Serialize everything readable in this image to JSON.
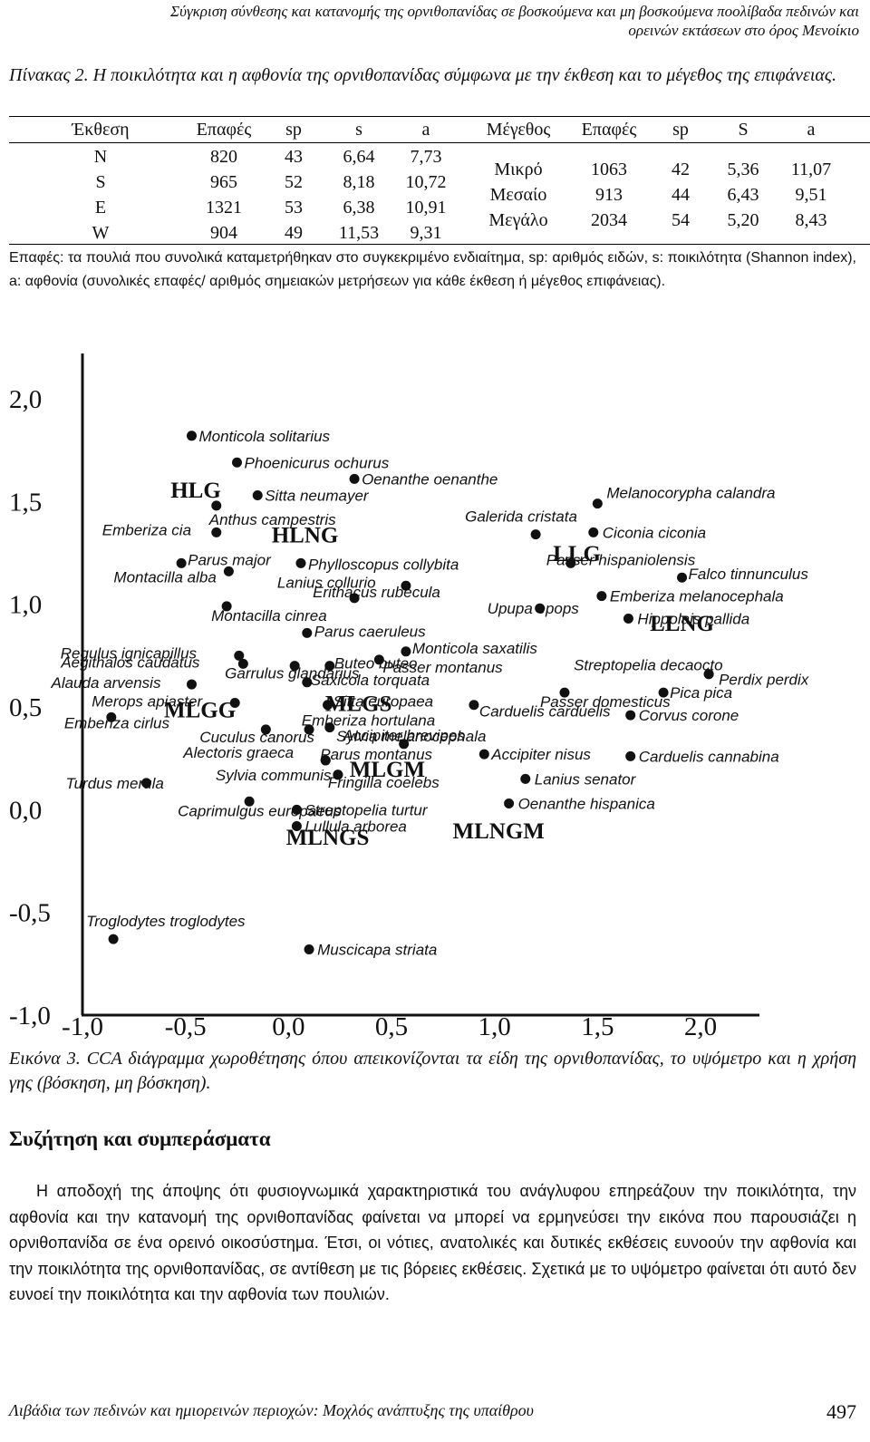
{
  "header": {
    "running_title_1": "Σύγκριση σύνθεσης και κατανομής της ορνιθοπανίδας σε βοσκούμενα και μη βοσκούμενα ποολίβαδα πεδινών και",
    "running_title_2": "ορεινών εκτάσεων στο όρος Μενοίκιο"
  },
  "table": {
    "caption": "Πίνακας 2. Η ποικιλότητα και η αφθονία της ορνιθοπανίδας σύμφωνα με την έκθεση και το μέγεθος της επιφάνειας.",
    "headers": [
      "Έκθεση",
      "Επαφές",
      "sp",
      "s",
      "a",
      "Μέγεθος",
      "Επαφές",
      "sp",
      "S",
      "a"
    ],
    "rows_exposure": [
      [
        "N",
        "820",
        "43",
        "6,64",
        "7,73"
      ],
      [
        "S",
        "965",
        "52",
        "8,18",
        "10,72"
      ],
      [
        "E",
        "1321",
        "53",
        "6,38",
        "10,91"
      ],
      [
        "W",
        "904",
        "49",
        "11,53",
        "9,31"
      ]
    ],
    "rows_size": [
      [
        "Μικρό",
        "1063",
        "42",
        "5,36",
        "11,07"
      ],
      [
        "Μεσαίο",
        "913",
        "44",
        "6,43",
        "9,51"
      ],
      [
        "Μεγάλο",
        "2034",
        "54",
        "5,20",
        "8,43"
      ]
    ],
    "note": "Επαφές: τα πουλιά που συνολικά καταμετρήθηκαν στο συγκεκριμένο ενδιαίτημα, sp: αριθμός ειδών, s: ποικιλότητα (Shannon index), a: αφθονία (συνολικές επαφές/ αριθμός σημειακών μετρήσεων για κάθε έκθεση ή μέγεθος επιφάνειας)."
  },
  "chart_data": {
    "type": "scatter",
    "xlim": [
      -1.0,
      2.0
    ],
    "ylim": [
      -1.0,
      2.0
    ],
    "x_ticks": [
      "-1,0",
      "-0,5",
      "0,0",
      "0,5",
      "1,0",
      "1,5",
      "2,0"
    ],
    "y_ticks": [
      "2,0",
      "1,5",
      "1,0",
      "0,5",
      "0,0",
      "-0,5",
      "-1,0"
    ],
    "grid": false,
    "points": [
      {
        "label": "Monticola solitarius",
        "x": -0.47,
        "y": 1.82
      },
      {
        "label": "Phoenicurus ochurus",
        "x": -0.25,
        "y": 1.69
      },
      {
        "label": "Oenanthe oenanthe",
        "x": 0.32,
        "y": 1.61
      },
      {
        "label": "Sitta neumayer",
        "x": -0.15,
        "y": 1.53
      },
      {
        "label": "Anthus campestris",
        "x": -0.35,
        "y": 1.48
      },
      {
        "label": "Melanocorypha calandra",
        "x": 1.5,
        "y": 1.49
      },
      {
        "label": "Galerida cristata",
        "x": 1.2,
        "y": 1.34
      },
      {
        "label": "Emberiza cia",
        "x": -0.35,
        "y": 1.35
      },
      {
        "label": "Ciconia ciconia",
        "x": 1.48,
        "y": 1.35
      },
      {
        "label": "Parus major",
        "x": -0.52,
        "y": 1.2
      },
      {
        "label": "Phylloscopus collybita",
        "x": 0.06,
        "y": 1.2
      },
      {
        "label": "Passer hispaniolensis",
        "x": 1.37,
        "y": 1.2
      },
      {
        "label": "Montacilla alba",
        "x": -0.29,
        "y": 1.16
      },
      {
        "label": "Lanius collurio",
        "x": 0.57,
        "y": 1.09
      },
      {
        "label": "Falco tinnunculus",
        "x": 1.91,
        "y": 1.13
      },
      {
        "label": "Erithacus rubecula",
        "x": 0.32,
        "y": 1.03
      },
      {
        "label": "Emberiza melanocephala",
        "x": 1.52,
        "y": 1.04
      },
      {
        "label": "Montacilla cinrea",
        "x": -0.3,
        "y": 0.99
      },
      {
        "label": "Upupa epops",
        "x": 1.22,
        "y": 0.98
      },
      {
        "label": "Hippolais pallida",
        "x": 1.65,
        "y": 0.93
      },
      {
        "label": "Parus caeruleus",
        "x": 0.09,
        "y": 0.86
      },
      {
        "label": "Monticola saxatilis",
        "x": 0.57,
        "y": 0.77
      },
      {
        "label": "Regulus ignicapillus",
        "x": -0.24,
        "y": 0.75
      },
      {
        "label": "Buteo buteo",
        "x": 0.2,
        "y": 0.7
      },
      {
        "label": "Aegithalos caudatus",
        "x": -0.22,
        "y": 0.71
      },
      {
        "label": "Passer montanus",
        "x": 0.44,
        "y": 0.73
      },
      {
        "label": "Streptopelia decaocto",
        "x": 2.04,
        "y": 0.66
      },
      {
        "label": "Perdix perdix",
        "x": 2.04,
        "y": 0.66
      },
      {
        "label": "Garrulus glandarius",
        "x": 0.03,
        "y": 0.7
      },
      {
        "label": "Alauda arvensis",
        "x": -0.47,
        "y": 0.61
      },
      {
        "label": "Saxicola torquata",
        "x": 0.09,
        "y": 0.62
      },
      {
        "label": "Pica pica",
        "x": 1.82,
        "y": 0.57
      },
      {
        "label": "Passer domesticus",
        "x": 1.34,
        "y": 0.57
      },
      {
        "label": "Merops apiaster",
        "x": -0.26,
        "y": 0.52
      },
      {
        "label": "Sitta europaea",
        "x": 0.19,
        "y": 0.51
      },
      {
        "label": "Carduelis carduelis",
        "x": 0.9,
        "y": 0.51
      },
      {
        "label": "Emberiza cirlus",
        "x": -0.86,
        "y": 0.45
      },
      {
        "label": "Emberiza hortulana",
        "x": 0.2,
        "y": 0.4
      },
      {
        "label": "Corvus corone",
        "x": 1.66,
        "y": 0.46
      },
      {
        "label": "Cuculus canorus",
        "x": -0.11,
        "y": 0.39
      },
      {
        "label": "Sylvia melanocephala",
        "x": 0.1,
        "y": 0.39
      },
      {
        "label": "Accipiter brevipes",
        "x": 0.56,
        "y": 0.32
      },
      {
        "label": "Alectoris graeca",
        "x": 0.18,
        "y": 0.24
      },
      {
        "label": "Parus montanus",
        "x": 0.18,
        "y": 0.24
      },
      {
        "label": "Accipiter nisus",
        "x": 0.95,
        "y": 0.27
      },
      {
        "label": "Carduelis cannabina",
        "x": 1.66,
        "y": 0.26
      },
      {
        "label": "Sylvia communis",
        "x": 0.24,
        "y": 0.17
      },
      {
        "label": "Fringilla coelebs",
        "x": 0.24,
        "y": 0.17
      },
      {
        "label": "Lanius senator",
        "x": 1.15,
        "y": 0.15
      },
      {
        "label": "Turdus merula",
        "x": -0.69,
        "y": 0.13
      },
      {
        "label": "Caprimulgus europaeus",
        "x": -0.19,
        "y": 0.04
      },
      {
        "label": "Oenanthe hispanica",
        "x": 1.07,
        "y": 0.03
      },
      {
        "label": "Streptopelia turtur",
        "x": 0.04,
        "y": 0.0
      },
      {
        "label": "Lullula arborea",
        "x": 0.04,
        "y": -0.08
      },
      {
        "label": "Troglodytes troglodytes",
        "x": -0.85,
        "y": -0.63
      },
      {
        "label": "Muscicapa striata",
        "x": 0.1,
        "y": -0.68
      }
    ],
    "group_labels": [
      {
        "label": "HLG",
        "x": -0.45,
        "y": 1.52
      },
      {
        "label": "HLNG",
        "x": 0.08,
        "y": 1.3
      },
      {
        "label": "LLG",
        "x": 1.4,
        "y": 1.21
      },
      {
        "label": "LLNG",
        "x": 1.91,
        "y": 0.87
      },
      {
        "label": "MLGG",
        "x": -0.43,
        "y": 0.45
      },
      {
        "label": "MLGS",
        "x": 0.34,
        "y": 0.48
      },
      {
        "label": "MLGM",
        "x": 0.48,
        "y": 0.16
      },
      {
        "label": "MLNGS",
        "x": 0.19,
        "y": -0.17
      },
      {
        "label": "MLNGM",
        "x": 1.02,
        "y": -0.14
      }
    ],
    "caption": "Εικόνα 3. CCA διάγραμμα χωροθέτησης όπου απεικονίζονται τα είδη της ορνιθοπανίδας, το υψόμετρο και η χρήση γης (βόσκηση, μη βόσκηση)."
  },
  "section": {
    "title": "Συζήτηση και συμπεράσματα",
    "paragraph": "Η αποδοχή της άποψης ότι φυσιογνωμικά χαρακτηριστικά του ανάγλυφου επηρεάζουν την ποικιλότητα, την αφθονία και την κατανομή της ορνιθοπανίδας φαίνεται να μπορεί να ερμηνεύσει την εικόνα που παρουσιάζει η ορνιθοπανίδα σε ένα ορεινό οικοσύστημα. Έτσι, οι νότιες, ανατολικές και δυτικές εκθέσεις ευνοούν την αφθονία και την ποικιλότητα της ορνιθοπανίδας, σε αντίθεση με τις βόρειες εκθέσεις. Σχετικά με το υψόμετρο φαίνεται ότι αυτό δεν ευνοεί την ποικιλότητα και την αφθονία των πουλιών."
  },
  "footer": {
    "text": "Λιβάδια των πεδινών και ημιορεινών περιοχών: Μοχλός ανάπτυξης της υπαίθρου",
    "page_number": "497"
  }
}
